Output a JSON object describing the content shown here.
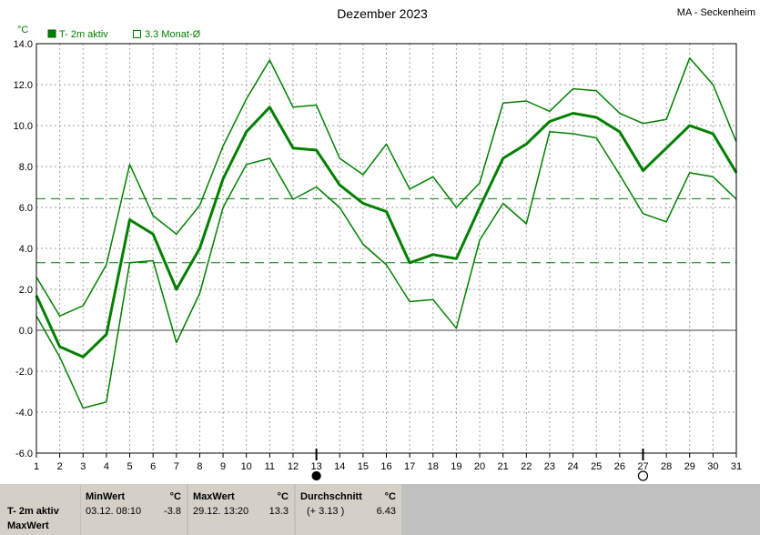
{
  "chart_data": {
    "type": "line",
    "title": "Dezember 2023",
    "station": "MA - Seckenheim",
    "ylabel": "°C",
    "ylim": [
      -6,
      14
    ],
    "yticks": [
      -6,
      -4,
      -2,
      0,
      2,
      4,
      6,
      8,
      10,
      12,
      14
    ],
    "ytick_labels": [
      "-6.0",
      "-4.0",
      "-2.0",
      "0.0",
      "2.0",
      "4.0",
      "6.0",
      "8.0",
      "10.0",
      "12.0",
      "14.0"
    ],
    "x": [
      1,
      2,
      3,
      4,
      5,
      6,
      7,
      8,
      9,
      10,
      11,
      12,
      13,
      14,
      15,
      16,
      17,
      18,
      19,
      20,
      21,
      22,
      23,
      24,
      25,
      26,
      27,
      28,
      29,
      30,
      31
    ],
    "x_labels": [
      "1",
      "2",
      "3",
      "4",
      "5",
      "6",
      "7",
      "8",
      "9",
      "10",
      "11",
      "12",
      "13",
      "14",
      "15",
      "16",
      "17",
      "18",
      "19",
      "20",
      "21",
      "22",
      "23",
      "24",
      "25",
      "26",
      "27",
      "28",
      "29",
      "30",
      "31"
    ],
    "grid": true,
    "legend": [
      {
        "label": "T- 2m aktiv",
        "marker": "filled-square"
      },
      {
        "label": "3.3 Monat-Ø",
        "marker": "open-square"
      }
    ],
    "series": [
      {
        "name": "T- 2m aktiv",
        "role": "mean",
        "values": [
          1.7,
          -0.8,
          -1.3,
          -0.2,
          5.4,
          4.7,
          2.0,
          4.0,
          7.4,
          9.7,
          10.9,
          8.9,
          8.8,
          7.1,
          6.2,
          5.8,
          3.3,
          3.7,
          3.5,
          6.0,
          8.4,
          9.1,
          10.2,
          10.6,
          10.4,
          9.7,
          7.8,
          8.9,
          10.0,
          9.6,
          7.7
        ]
      },
      {
        "role": "max",
        "values": [
          2.6,
          0.7,
          1.2,
          3.2,
          8.1,
          5.6,
          4.7,
          6.1,
          9.0,
          11.3,
          13.2,
          10.9,
          11.0,
          8.4,
          7.6,
          9.1,
          6.9,
          7.5,
          6.0,
          7.2,
          11.1,
          11.2,
          10.7,
          11.8,
          11.7,
          10.6,
          10.1,
          10.3,
          13.3,
          12.0,
          9.2
        ]
      },
      {
        "role": "min",
        "values": [
          0.7,
          -1.3,
          -3.8,
          -3.5,
          3.3,
          3.4,
          -0.6,
          1.8,
          6.0,
          8.1,
          8.4,
          6.4,
          7.0,
          6.0,
          4.2,
          3.2,
          1.4,
          1.5,
          0.1,
          4.4,
          6.2,
          5.2,
          9.7,
          9.6,
          9.4,
          7.6,
          5.7,
          5.3,
          7.7,
          7.5,
          6.4
        ]
      }
    ],
    "reference_lines": [
      {
        "name": "Durchschnitt",
        "value": 6.43
      },
      {
        "name": "3.3 Monat-Ø",
        "value": 3.3
      }
    ],
    "moon_phases": [
      {
        "day": 13,
        "phase": "new-moon"
      },
      {
        "day": 27,
        "phase": "full-moon"
      }
    ],
    "colors": {
      "line": "#008000",
      "grid": "#a0a0a0",
      "zero": "#808080",
      "panel": "#c0c0c0"
    }
  },
  "stats_panel": {
    "row_label": "T- 2m aktiv",
    "row_label2": "MaxWert",
    "min_header": "MinWert",
    "min_unit": "°C",
    "min_time": "03.12.  08:10",
    "min_value": "-3.8",
    "max_header": "MaxWert",
    "max_unit": "°C",
    "max_time": "29.12.  13:20",
    "max_value": "13.3",
    "avg_header": "Durchschnitt",
    "avg_unit": "°C",
    "avg_delta": "(+ 3.13 )",
    "avg_value": "6.43"
  }
}
